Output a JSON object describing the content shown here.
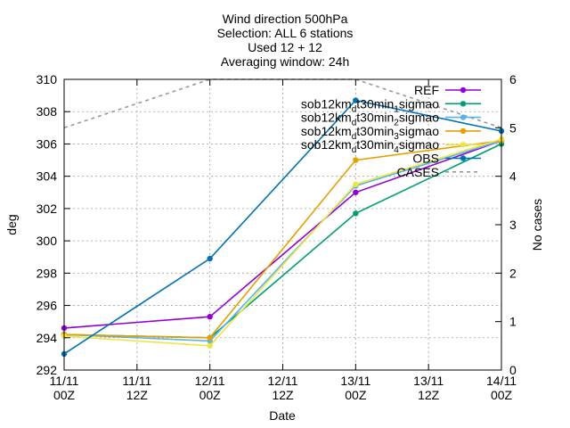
{
  "chart_data": {
    "type": "line",
    "title_lines": [
      "Wind direction 500hPa",
      "Selection: ALL      6 stations",
      "Used 12 + 12",
      "Averaging window: 24h"
    ],
    "xlabel": "Date",
    "ylabel": "deg",
    "y2label": "No cases",
    "x_ticks": [
      {
        "x": 0,
        "line1": "11/11",
        "line2": "00Z"
      },
      {
        "x": 12,
        "line1": "11/11",
        "line2": "12Z"
      },
      {
        "x": 24,
        "line1": "12/11",
        "line2": "00Z"
      },
      {
        "x": 36,
        "line1": "12/11",
        "line2": "12Z"
      },
      {
        "x": 48,
        "line1": "13/11",
        "line2": "00Z"
      },
      {
        "x": 60,
        "line1": "13/11",
        "line2": "12Z"
      },
      {
        "x": 72,
        "line1": "14/11",
        "line2": "00Z"
      }
    ],
    "xlim": [
      0,
      72
    ],
    "ylim": [
      292,
      310
    ],
    "y_ticks": [
      292,
      294,
      296,
      298,
      300,
      302,
      304,
      306,
      308,
      310
    ],
    "y2lim": [
      0,
      6
    ],
    "y2_ticks": [
      0,
      1,
      2,
      3,
      4,
      5,
      6
    ],
    "grid": true,
    "legend_position": "top-right",
    "series": [
      {
        "label": "REF",
        "color": "#9400d3",
        "marker": "circle",
        "x": [
          0,
          24,
          48,
          72
        ],
        "y": [
          294.6,
          295.3,
          303.0,
          306.2
        ]
      },
      {
        "label": "sob12km_dt30min_1sigmao",
        "label_parts": [
          "sob12km",
          "d",
          "t30min",
          "1",
          "sigmao"
        ],
        "color": "#009e73",
        "marker": "circle",
        "x": [
          0,
          24,
          48,
          72
        ],
        "y": [
          294.2,
          294.0,
          301.7,
          306.0
        ]
      },
      {
        "label": "sob12km_dt30min_2sigmao",
        "label_parts": [
          "sob12km",
          "d",
          "t30min",
          "2",
          "sigmao"
        ],
        "color": "#56b4e9",
        "marker": "circle",
        "x": [
          0,
          24,
          48,
          72
        ],
        "y": [
          294.2,
          293.8,
          303.4,
          306.2
        ]
      },
      {
        "label": "sob12km_dt30min_3sigmao",
        "label_parts": [
          "sob12km",
          "d",
          "t30min",
          "3",
          "sigmao"
        ],
        "color": "#e69f00",
        "marker": "circle",
        "x": [
          0,
          24,
          48,
          72
        ],
        "y": [
          294.2,
          294.0,
          305.0,
          306.2
        ]
      },
      {
        "label": "sob12km_dt30min_4sigmao",
        "label_parts": [
          "sob12km",
          "d",
          "t30min",
          "4",
          "sigmao"
        ],
        "color": "#f0e442",
        "marker": "circle",
        "x": [
          0,
          24,
          48,
          72
        ],
        "y": [
          294.1,
          293.5,
          303.5,
          306.3
        ]
      },
      {
        "label": "OBS",
        "color": "#0072b2",
        "marker": "circle",
        "x": [
          0,
          24,
          48,
          72
        ],
        "y": [
          293.0,
          298.9,
          308.7,
          306.8
        ]
      },
      {
        "label": "CASES",
        "color": "#999999",
        "dashed": true,
        "axis": "y2",
        "x": [
          0,
          24,
          48,
          72
        ],
        "y": [
          5,
          6,
          6,
          5
        ]
      }
    ]
  }
}
